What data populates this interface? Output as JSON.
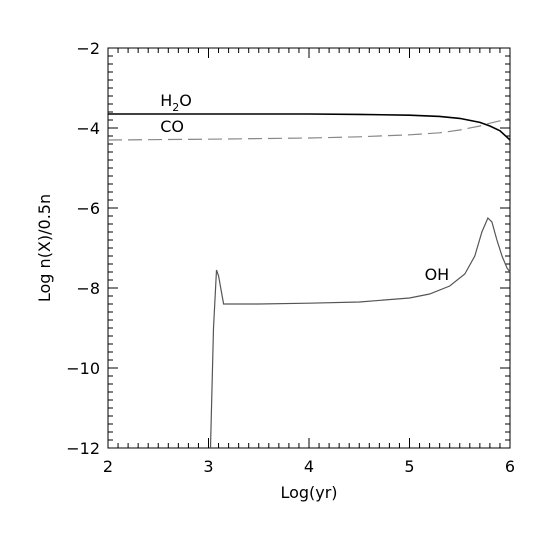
{
  "chart_data": {
    "type": "line",
    "title": "",
    "xlabel": "Log(yr)",
    "ylabel": "Log n(X)/0.5n",
    "xlim": [
      2,
      6
    ],
    "ylim": [
      -12,
      -2
    ],
    "xticks": [
      2,
      3,
      4,
      5,
      6
    ],
    "yticks": [
      -12,
      -10,
      -8,
      -6,
      -4,
      -2
    ],
    "xtick_labels": [
      "2",
      "3",
      "4",
      "5",
      "6"
    ],
    "ytick_labels": [
      "−12",
      "−10",
      "−8",
      "−6",
      "−4",
      "−2"
    ],
    "grid": false,
    "legend": "none",
    "series": [
      {
        "label": "H",
        "label_sub": "2",
        "label_rest": "O",
        "style": "solid",
        "color": "#000000",
        "x": [
          2.0,
          3.0,
          4.0,
          4.5,
          5.0,
          5.3,
          5.5,
          5.7,
          5.8,
          5.9,
          6.0
        ],
        "y": [
          -3.65,
          -3.65,
          -3.65,
          -3.66,
          -3.68,
          -3.71,
          -3.76,
          -3.86,
          -3.95,
          -4.07,
          -4.3
        ]
      },
      {
        "label": "CO",
        "style": "dashed",
        "color": "#888888",
        "x": [
          2.0,
          3.0,
          4.0,
          4.5,
          5.0,
          5.3,
          5.5,
          5.7,
          5.8,
          5.9,
          6.0
        ],
        "y": [
          -4.3,
          -4.28,
          -4.25,
          -4.22,
          -4.17,
          -4.12,
          -4.05,
          -3.95,
          -3.88,
          -3.82,
          -3.76
        ]
      },
      {
        "label": "OH",
        "style": "solid",
        "color": "#555555",
        "x": [
          3.02,
          3.05,
          3.08,
          3.1,
          3.15,
          3.5,
          4.0,
          4.5,
          5.0,
          5.2,
          5.4,
          5.55,
          5.65,
          5.72,
          5.78,
          5.82,
          5.87,
          5.92,
          5.97,
          6.0
        ],
        "y": [
          -12,
          -9.0,
          -7.55,
          -7.7,
          -8.4,
          -8.4,
          -8.38,
          -8.35,
          -8.25,
          -8.15,
          -7.95,
          -7.65,
          -7.2,
          -6.6,
          -6.25,
          -6.35,
          -6.8,
          -7.2,
          -7.5,
          -7.6
        ]
      }
    ],
    "annotations": [
      {
        "series": 0,
        "text": "H2O",
        "x": 2.52,
        "y": -3.45
      },
      {
        "series": 1,
        "text": "CO",
        "x": 2.52,
        "y": -4.1
      },
      {
        "series": 2,
        "text": "OH",
        "x": 5.15,
        "y": -7.8
      }
    ]
  }
}
